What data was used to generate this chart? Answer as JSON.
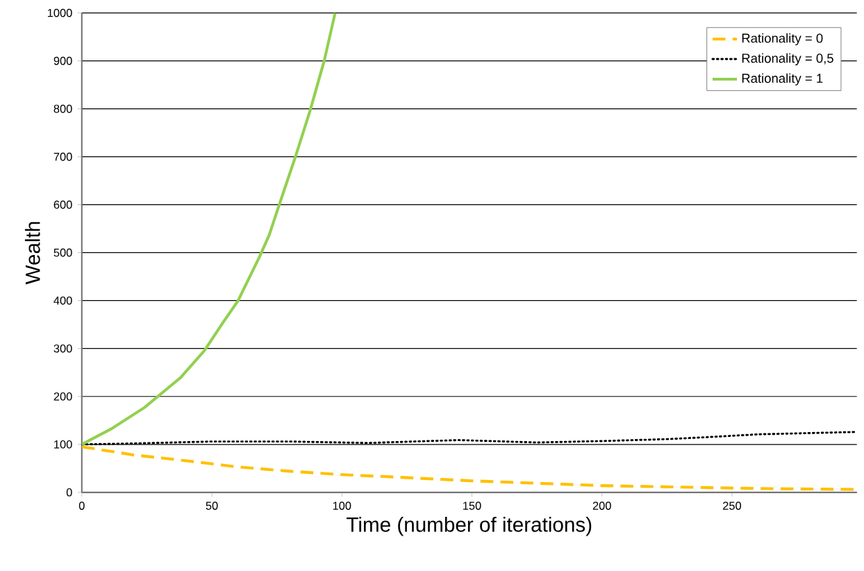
{
  "chart_data": {
    "type": "line",
    "xlabel": "Time (number of iterations)",
    "ylabel": "Wealth",
    "xlim": [
      0,
      298
    ],
    "ylim": [
      0,
      1000
    ],
    "xticks": [
      0,
      50,
      100,
      150,
      200,
      250
    ],
    "yticks": [
      0,
      100,
      200,
      300,
      400,
      500,
      600,
      700,
      800,
      900,
      1000
    ],
    "grid": "y",
    "legend": "top right",
    "marker": "none",
    "series": [
      {
        "name": "Rationality = 0",
        "color": "#ffc000",
        "line_style": "dashed",
        "x": [
          0,
          20,
          40,
          60,
          80,
          100,
          120,
          150,
          180,
          200,
          230,
          260,
          298
        ],
        "values": [
          95,
          78,
          66,
          53,
          44,
          37,
          32,
          24,
          18,
          14,
          11,
          8,
          6
        ]
      },
      {
        "name": "Rationality = 0,5",
        "color": "#000000",
        "line_style": "dotted",
        "x": [
          0,
          20,
          50,
          80,
          110,
          145,
          175,
          200,
          225,
          240,
          260,
          298
        ],
        "values": [
          100,
          102,
          106,
          106,
          103,
          109,
          104,
          107,
          111,
          115,
          121,
          126
        ]
      },
      {
        "name": "Rationality = 1",
        "color": "#92d050",
        "line_style": "solid",
        "x": [
          0,
          11.2,
          24.1,
          37.9,
          47.2,
          54.5,
          60,
          68.3,
          72,
          76.6,
          82.2,
          87.7,
          93.2,
          97.4
        ],
        "values": [
          100,
          132,
          177,
          239,
          296,
          356,
          399,
          491,
          536,
          611,
          701,
          795,
          900,
          1000
        ]
      }
    ]
  }
}
